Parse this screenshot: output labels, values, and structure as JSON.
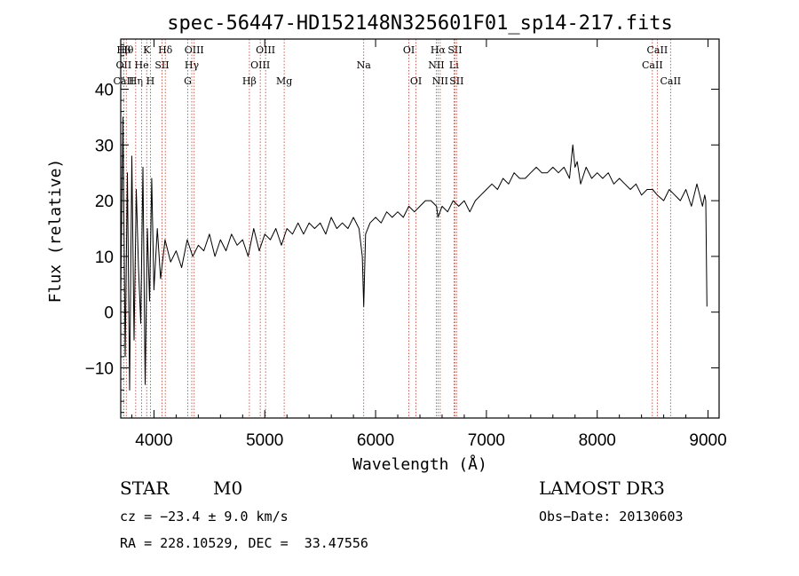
{
  "chart_data": {
    "type": "line",
    "title": "spec-56447-HD152148N325601F01_sp14-217.fits",
    "xlabel": "Wavelength (Å)",
    "ylabel": "Flux (relative)",
    "xlim": [
      3700,
      9100
    ],
    "ylim": [
      -19,
      49
    ],
    "xticks": [
      4000,
      5000,
      6000,
      7000,
      8000,
      9000
    ],
    "yticks": [
      -10,
      0,
      10,
      20,
      30,
      40
    ],
    "grid": false,
    "series": [
      {
        "name": "spectrum",
        "x": [
          3700,
          3720,
          3740,
          3760,
          3780,
          3800,
          3820,
          3840,
          3860,
          3880,
          3900,
          3920,
          3940,
          3960,
          3980,
          4000,
          4030,
          4060,
          4100,
          4150,
          4200,
          4250,
          4300,
          4350,
          4400,
          4450,
          4500,
          4550,
          4600,
          4650,
          4700,
          4750,
          4800,
          4850,
          4900,
          4950,
          5000,
          5050,
          5100,
          5150,
          5200,
          5250,
          5300,
          5350,
          5400,
          5450,
          5500,
          5550,
          5600,
          5650,
          5700,
          5750,
          5800,
          5850,
          5880,
          5893,
          5910,
          5950,
          6000,
          6050,
          6100,
          6150,
          6200,
          6250,
          6300,
          6350,
          6400,
          6450,
          6500,
          6550,
          6563,
          6600,
          6650,
          6700,
          6750,
          6800,
          6850,
          6900,
          6950,
          7000,
          7050,
          7100,
          7150,
          7200,
          7250,
          7300,
          7350,
          7400,
          7450,
          7500,
          7550,
          7600,
          7650,
          7700,
          7750,
          7780,
          7800,
          7820,
          7850,
          7900,
          7950,
          8000,
          8050,
          8100,
          8150,
          8200,
          8250,
          8300,
          8350,
          8400,
          8450,
          8500,
          8542,
          8600,
          8650,
          8700,
          8750,
          8800,
          8850,
          8900,
          8950,
          8970,
          8980,
          8990
        ],
        "values": [
          3,
          35,
          -8,
          25,
          -14,
          28,
          -5,
          22,
          8,
          -2,
          26,
          -13,
          15,
          2,
          24,
          4,
          15,
          6,
          13,
          9,
          11,
          8,
          13,
          10,
          12,
          11,
          14,
          10,
          13,
          11,
          14,
          12,
          13,
          10,
          15,
          11,
          14,
          13,
          15,
          12,
          15,
          14,
          16,
          14,
          16,
          15,
          16,
          14,
          17,
          15,
          16,
          15,
          17,
          15,
          10,
          1,
          14,
          16,
          17,
          16,
          18,
          17,
          18,
          17,
          19,
          18,
          19,
          20,
          20,
          19,
          17,
          19,
          18,
          20,
          19,
          20,
          18,
          20,
          21,
          22,
          23,
          22,
          24,
          23,
          25,
          24,
          24,
          25,
          26,
          25,
          25,
          26,
          25,
          26,
          24,
          30,
          26,
          27,
          23,
          26,
          24,
          25,
          24,
          25,
          23,
          24,
          23,
          22,
          23,
          21,
          22,
          22,
          21,
          20,
          22,
          21,
          20,
          22,
          19,
          23,
          19,
          21,
          20,
          1
        ]
      }
    ],
    "spectral_lines": [
      {
        "label": "Hβ",
        "x": 3727,
        "row": 0
      },
      {
        "label": "OII",
        "x": 3727,
        "row": 1
      },
      {
        "label": "CaII",
        "x": 3727,
        "row": 2
      },
      {
        "label": "Hθ",
        "x": 3750,
        "row": 0
      },
      {
        "label": "Hη",
        "x": 3835,
        "row": 2
      },
      {
        "label": "K",
        "x": 3934,
        "row": 0
      },
      {
        "label": "He",
        "x": 3889,
        "row": 1
      },
      {
        "label": "SII",
        "x": 4072,
        "row": 1
      },
      {
        "label": "Hδ",
        "x": 4102,
        "row": 0
      },
      {
        "label": "H",
        "x": 3968,
        "row": 2
      },
      {
        "label": "OIII",
        "x": 4363,
        "row": 0
      },
      {
        "label": "Hγ",
        "x": 4341,
        "row": 1
      },
      {
        "label": "G",
        "x": 4305,
        "row": 2
      },
      {
        "label": "Hβ",
        "x": 4861,
        "row": 2
      },
      {
        "label": "OIII",
        "x": 5007,
        "row": 0
      },
      {
        "label": "OIII",
        "x": 4959,
        "row": 1
      },
      {
        "label": "Mg",
        "x": 5175,
        "row": 2
      },
      {
        "label": "Na",
        "x": 5893,
        "row": 1
      },
      {
        "label": "OI",
        "x": 6300,
        "row": 0
      },
      {
        "label": "OI",
        "x": 6364,
        "row": 2
      },
      {
        "label": "Hα",
        "x": 6563,
        "row": 0
      },
      {
        "label": "SII",
        "x": 6716,
        "row": 0
      },
      {
        "label": "NII",
        "x": 6548,
        "row": 1
      },
      {
        "label": "Li",
        "x": 6707,
        "row": 1
      },
      {
        "label": "NII",
        "x": 6583,
        "row": 2
      },
      {
        "label": "SII",
        "x": 6731,
        "row": 2
      },
      {
        "label": "CaII",
        "x": 8542,
        "row": 0
      },
      {
        "label": "CaII",
        "x": 8498,
        "row": 1
      },
      {
        "label": "CaII",
        "x": 8662,
        "row": 2
      }
    ],
    "line_marker_color": "#c0392b",
    "spectrum_color": "#000000"
  },
  "info": {
    "object_class": "STAR",
    "subclass": "M0",
    "survey": "LAMOST DR3",
    "cz": "cz = −23.4 ± 9.0 km/s",
    "obs_date": "Obs−Date: 20130603",
    "coords": "RA = 228.10529, DEC =  33.47556"
  }
}
